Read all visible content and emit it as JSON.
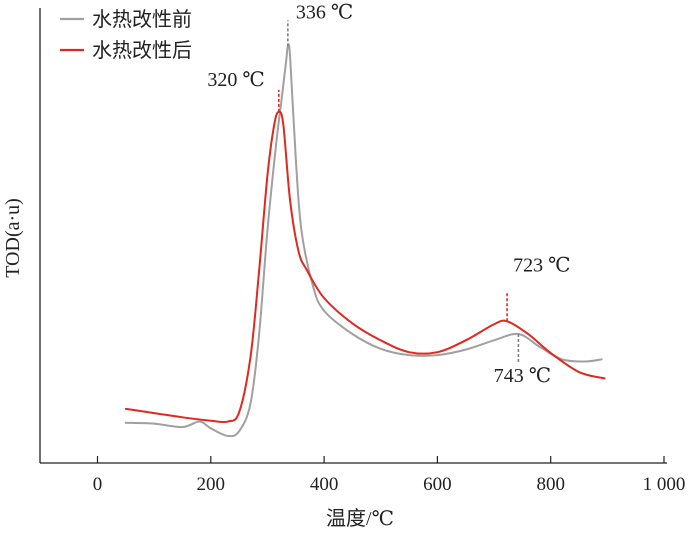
{
  "chart_data": {
    "type": "line",
    "title": "",
    "xlabel": "温度/℃",
    "ylabel": "TOD(a·u)",
    "xlim": [
      -100,
      1000
    ],
    "ylim": [
      0,
      1
    ],
    "x_ticks": [
      {
        "value": 0,
        "label": "0"
      },
      {
        "value": 200,
        "label": "200"
      },
      {
        "value": 400,
        "label": "400"
      },
      {
        "value": 600,
        "label": "600"
      },
      {
        "value": 800,
        "label": "800"
      },
      {
        "value": 1000,
        "label": "1 000"
      }
    ],
    "grid": false,
    "legend_position": "top-left",
    "series": [
      {
        "name": "水热改性前",
        "color": "#a0a0a0",
        "points": [
          [
            50,
            0.095
          ],
          [
            100,
            0.093
          ],
          [
            150,
            0.085
          ],
          [
            180,
            0.098
          ],
          [
            200,
            0.082
          ],
          [
            230,
            0.064
          ],
          [
            250,
            0.075
          ],
          [
            270,
            0.14
          ],
          [
            285,
            0.3
          ],
          [
            300,
            0.55
          ],
          [
            315,
            0.75
          ],
          [
            325,
            0.86
          ],
          [
            333,
            0.95
          ],
          [
            336,
            0.985
          ],
          [
            340,
            0.96
          ],
          [
            350,
            0.72
          ],
          [
            360,
            0.55
          ],
          [
            380,
            0.42
          ],
          [
            400,
            0.36
          ],
          [
            450,
            0.305
          ],
          [
            500,
            0.27
          ],
          [
            550,
            0.255
          ],
          [
            600,
            0.255
          ],
          [
            650,
            0.268
          ],
          [
            700,
            0.29
          ],
          [
            743,
            0.305
          ],
          [
            780,
            0.275
          ],
          [
            820,
            0.245
          ],
          [
            860,
            0.24
          ],
          [
            890,
            0.245
          ]
        ]
      },
      {
        "name": "水热改性后",
        "color": "#e0281e",
        "points": [
          [
            50,
            0.128
          ],
          [
            100,
            0.118
          ],
          [
            150,
            0.108
          ],
          [
            200,
            0.1
          ],
          [
            230,
            0.098
          ],
          [
            250,
            0.12
          ],
          [
            270,
            0.25
          ],
          [
            285,
            0.45
          ],
          [
            300,
            0.68
          ],
          [
            312,
            0.8
          ],
          [
            320,
            0.83
          ],
          [
            328,
            0.8
          ],
          [
            340,
            0.62
          ],
          [
            355,
            0.5
          ],
          [
            370,
            0.455
          ],
          [
            400,
            0.39
          ],
          [
            450,
            0.33
          ],
          [
            500,
            0.29
          ],
          [
            550,
            0.262
          ],
          [
            600,
            0.262
          ],
          [
            650,
            0.29
          ],
          [
            700,
            0.328
          ],
          [
            723,
            0.335
          ],
          [
            760,
            0.305
          ],
          [
            800,
            0.26
          ],
          [
            850,
            0.215
          ],
          [
            895,
            0.2
          ]
        ]
      }
    ],
    "annotations": [
      {
        "text": "336 ℃",
        "x": 336,
        "color": "#808080"
      },
      {
        "text": "320 ℃",
        "x": 320,
        "color": "#e0281e"
      },
      {
        "text": "723 ℃",
        "x": 723,
        "color": "#e0281e"
      },
      {
        "text": "743 ℃",
        "x": 743,
        "color": "#808080"
      }
    ]
  }
}
